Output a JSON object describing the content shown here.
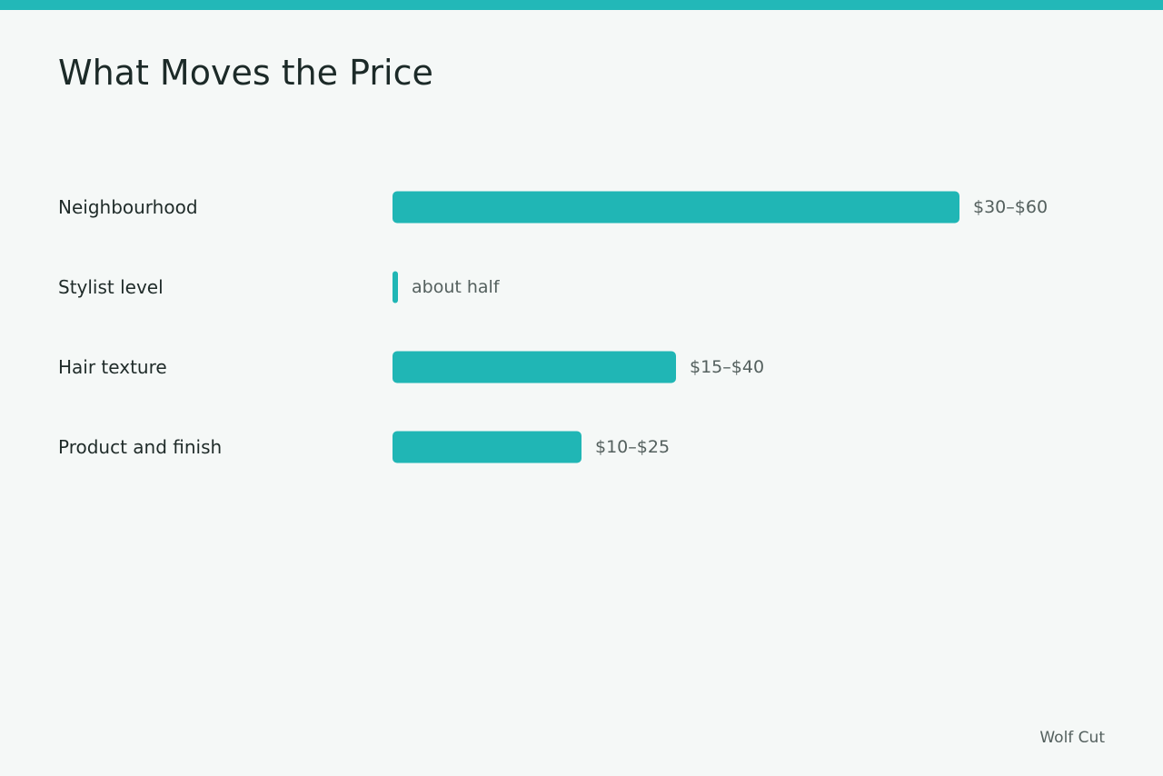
{
  "title": "What Moves the Price",
  "footer": "Wolf Cut",
  "colors": {
    "accent": "#22b8b8",
    "bar": "#20b6b5",
    "background": "#f5f8f7"
  },
  "chart_data": {
    "type": "bar",
    "orientation": "horizontal",
    "title": "What Moves the Price",
    "xlabel": "",
    "ylabel": "",
    "grid": false,
    "xlim": [
      0,
      60
    ],
    "categories": [
      "Neighbourhood",
      "Stylist level",
      "Hair texture",
      "Product and finish"
    ],
    "values": [
      60,
      0,
      30,
      20
    ],
    "value_labels": [
      "$30–$60",
      "about half",
      "$15–$40",
      "$10–$25"
    ]
  }
}
